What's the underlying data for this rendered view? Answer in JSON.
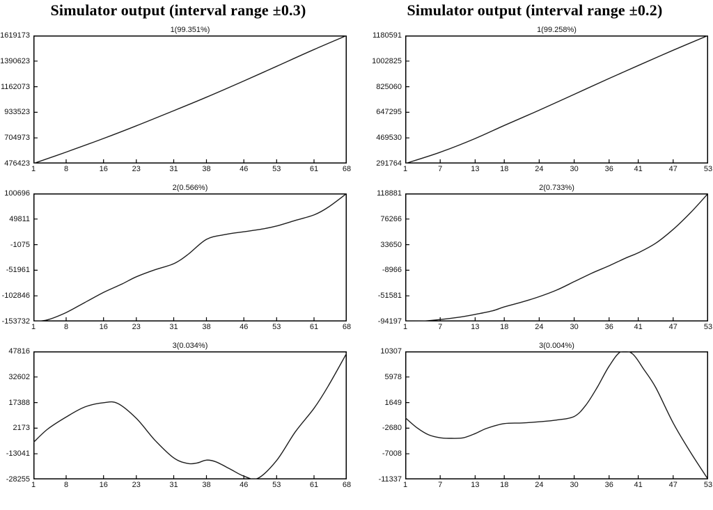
{
  "figure": {
    "background": "#ffffff",
    "curve_color": "#1c1c1c",
    "frame_color": "#000000"
  },
  "columns": [
    {
      "title": "Simulator output (interval range ±0.3)"
    },
    {
      "title": "Simulator output (interval range ±0.2)"
    }
  ],
  "chart_data": [
    {
      "type": "line",
      "title": "1(99.351%)",
      "xlabel": "",
      "ylabel": "",
      "legend": null,
      "grid": false,
      "xlim": [
        1,
        68
      ],
      "ylim": [
        476423,
        1619173
      ],
      "x_ticks": [
        1,
        8,
        16,
        23,
        31,
        38,
        46,
        53,
        61,
        68
      ],
      "y_ticks": [
        1619173,
        1390623,
        1162073,
        933523,
        704973,
        476423
      ],
      "x": [
        1,
        8,
        16,
        23,
        31,
        38,
        46,
        53,
        61,
        68
      ],
      "y": [
        476423,
        578000,
        700000,
        813000,
        948000,
        1068000,
        1213000,
        1344000,
        1494000,
        1619173
      ]
    },
    {
      "type": "line",
      "title": "1(99.258%)",
      "xlabel": "",
      "ylabel": "",
      "legend": null,
      "grid": false,
      "xlim": [
        1,
        53
      ],
      "ylim": [
        291764,
        1180591
      ],
      "x_ticks": [
        1,
        7,
        13,
        18,
        24,
        30,
        36,
        41,
        47,
        53
      ],
      "y_ticks": [
        1180591,
        1002825,
        825060,
        647295,
        469530,
        291764
      ],
      "x": [
        1,
        7,
        13,
        18,
        24,
        30,
        36,
        41,
        47,
        53
      ],
      "y": [
        291764,
        370000,
        465000,
        556000,
        662000,
        772000,
        882000,
        972000,
        1078000,
        1180591
      ]
    },
    {
      "type": "line",
      "title": "2(0.566%)",
      "xlabel": "",
      "ylabel": "",
      "legend": null,
      "grid": false,
      "xlim": [
        1,
        68
      ],
      "ylim": [
        -153732,
        100696
      ],
      "x_ticks": [
        1,
        8,
        16,
        23,
        31,
        38,
        46,
        53,
        61,
        68
      ],
      "y_ticks": [
        100696,
        49811,
        -1075,
        -51961,
        -102846,
        -153732
      ],
      "x": [
        1,
        4,
        8,
        12,
        16,
        20,
        23,
        27,
        31,
        34,
        38,
        42,
        46,
        50,
        53,
        57,
        61,
        64,
        68
      ],
      "y": [
        -153732,
        -150500,
        -136000,
        -116000,
        -96000,
        -79000,
        -65000,
        -51000,
        -39000,
        -21000,
        9500,
        19000,
        24500,
        30000,
        36000,
        47000,
        58000,
        73000,
        100696
      ]
    },
    {
      "type": "line",
      "title": "2(0.733%)",
      "xlabel": "",
      "ylabel": "",
      "legend": null,
      "grid": false,
      "xlim": [
        1,
        53
      ],
      "ylim": [
        -94197,
        118881
      ],
      "x_ticks": [
        1,
        7,
        13,
        18,
        24,
        30,
        36,
        41,
        47,
        53
      ],
      "y_ticks": [
        118881,
        76266,
        33650,
        -8966,
        -51581,
        -94197
      ],
      "x": [
        1,
        4,
        7,
        10,
        13,
        16,
        18,
        21,
        24,
        27,
        30,
        33,
        36,
        39,
        41,
        44,
        47,
        50,
        53
      ],
      "y": [
        -94197,
        -93500,
        -91000,
        -87500,
        -82500,
        -76500,
        -70000,
        -62000,
        -53000,
        -42000,
        -28000,
        -14000,
        -1500,
        12000,
        20000,
        36000,
        59000,
        87000,
        118881
      ]
    },
    {
      "type": "line",
      "title": "3(0.034%)",
      "xlabel": "",
      "ylabel": "",
      "legend": null,
      "grid": false,
      "xlim": [
        1,
        68
      ],
      "ylim": [
        -28255,
        47816
      ],
      "x_ticks": [
        1,
        8,
        16,
        23,
        31,
        38,
        46,
        53,
        61,
        68
      ],
      "y_ticks": [
        47816,
        32602,
        17388,
        2173,
        -13041,
        -28255
      ],
      "x": [
        1,
        4,
        8,
        12,
        16,
        19,
        23,
        27,
        31,
        34,
        36,
        38,
        40,
        43,
        46,
        49,
        53,
        57,
        61,
        64,
        68
      ],
      "y": [
        -6300,
        1500,
        8800,
        14800,
        17300,
        16900,
        8000,
        -5000,
        -15500,
        -18800,
        -18500,
        -16800,
        -17800,
        -22000,
        -26300,
        -27600,
        -17000,
        0,
        14000,
        27000,
        46800
      ]
    },
    {
      "type": "line",
      "title": "3(0.004%)",
      "xlabel": "",
      "ylabel": "",
      "legend": null,
      "grid": false,
      "xlim": [
        1,
        53
      ],
      "ylim": [
        -11337,
        10307
      ],
      "x_ticks": [
        1,
        7,
        13,
        18,
        24,
        30,
        36,
        41,
        47,
        53
      ],
      "y_ticks": [
        10307,
        5978,
        1649,
        -2680,
        -7008,
        -11337
      ],
      "x": [
        1,
        3,
        5,
        7,
        9,
        11,
        13,
        15,
        18,
        21,
        24,
        27,
        30,
        32,
        34,
        36,
        38,
        40,
        42,
        44,
        47,
        50,
        53
      ],
      "y": [
        -900,
        -2600,
        -3800,
        -4300,
        -4400,
        -4300,
        -3600,
        -2700,
        -1900,
        -1800,
        -1600,
        -1300,
        -700,
        1200,
        4300,
        7800,
        10250,
        9900,
        7200,
        4200,
        -1800,
        -6800,
        -11337
      ]
    }
  ]
}
